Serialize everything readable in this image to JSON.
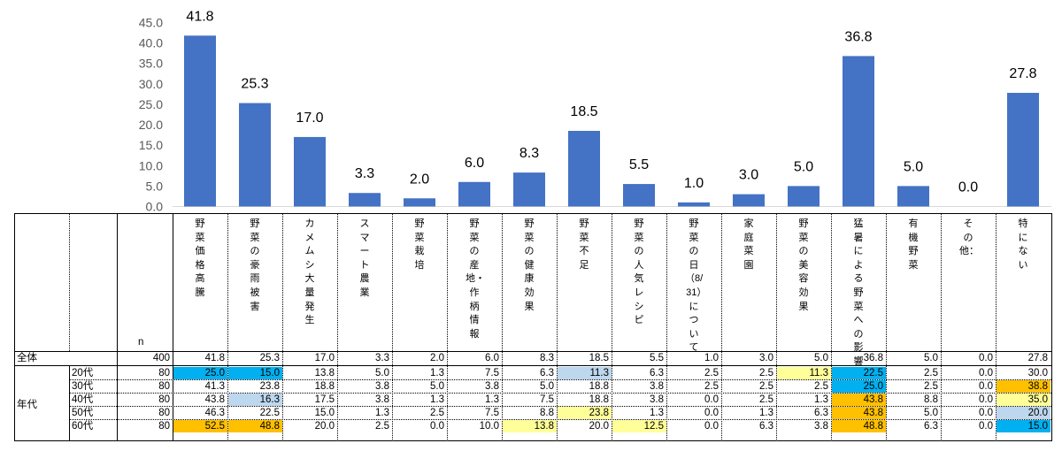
{
  "chart_data": {
    "type": "bar",
    "y_ticks": [
      "0.0",
      "5.0",
      "10.0",
      "15.0",
      "20.0",
      "25.0",
      "30.0",
      "35.0",
      "40.0",
      "45.0"
    ],
    "ylim": [
      0,
      45
    ],
    "categories": [
      "野菜価格高騰",
      "野菜の豪雨被害",
      "カメムシ大量発生",
      "スマート農業",
      "野菜栽培",
      "野菜の産地・作柄情報",
      "野菜の健康効果",
      "野菜不足",
      "野菜の人気レシピ",
      "野菜の日（8/31）について",
      "家庭菜園",
      "野菜の美容効果",
      "猛暑による野菜への影響",
      "有機野菜",
      "その他：",
      "特にない"
    ],
    "values": [
      41.8,
      25.3,
      17.0,
      3.3,
      2.0,
      6.0,
      8.3,
      18.5,
      5.5,
      1.0,
      3.0,
      5.0,
      36.8,
      5.0,
      0.0,
      27.8
    ],
    "value_labels": [
      "41.8",
      "25.3",
      "17.0",
      "3.3",
      "2.0",
      "6.0",
      "8.3",
      "18.5",
      "5.5",
      "1.0",
      "3.0",
      "5.0",
      "36.8",
      "5.0",
      "0.0",
      "27.8"
    ],
    "bar_color": "#4472C4"
  },
  "table": {
    "n_header": "n",
    "group_label": "年代",
    "rows": [
      {
        "label": "全体",
        "n": "400",
        "cells": [
          "41.8",
          "25.3",
          "17.0",
          "3.3",
          "2.0",
          "6.0",
          "8.3",
          "18.5",
          "5.5",
          "1.0",
          "3.0",
          "5.0",
          "36.8",
          "5.0",
          "0.0",
          "27.8"
        ],
        "hl": [
          "",
          "",
          "",
          "",
          "",
          "",
          "",
          "",
          "",
          "",
          "",
          "",
          "",
          "",
          "",
          ""
        ]
      },
      {
        "label": "20代",
        "n": "80",
        "cells": [
          "25.0",
          "15.0",
          "13.8",
          "5.0",
          "1.3",
          "7.5",
          "6.3",
          "11.3",
          "6.3",
          "2.5",
          "2.5",
          "11.3",
          "22.5",
          "2.5",
          "0.0",
          "30.0"
        ],
        "hl": [
          "c",
          "c",
          "",
          "",
          "",
          "",
          "",
          "l",
          "",
          "",
          "",
          "y",
          "c",
          "",
          "",
          ""
        ]
      },
      {
        "label": "30代",
        "n": "80",
        "cells": [
          "41.3",
          "23.8",
          "18.8",
          "3.8",
          "5.0",
          "3.8",
          "5.0",
          "18.8",
          "3.8",
          "2.5",
          "2.5",
          "2.5",
          "25.0",
          "2.5",
          "0.0",
          "38.8"
        ],
        "hl": [
          "",
          "",
          "",
          "",
          "",
          "",
          "",
          "",
          "",
          "",
          "",
          "",
          "c",
          "",
          "",
          "o"
        ]
      },
      {
        "label": "40代",
        "n": "80",
        "cells": [
          "43.8",
          "16.3",
          "17.5",
          "3.8",
          "1.3",
          "1.3",
          "7.5",
          "18.8",
          "3.8",
          "0.0",
          "2.5",
          "1.3",
          "43.8",
          "8.8",
          "0.0",
          "35.0"
        ],
        "hl": [
          "",
          "l",
          "",
          "",
          "",
          "",
          "",
          "",
          "",
          "",
          "",
          "",
          "o",
          "",
          "",
          "y"
        ]
      },
      {
        "label": "50代",
        "n": "80",
        "cells": [
          "46.3",
          "22.5",
          "15.0",
          "1.3",
          "2.5",
          "7.5",
          "8.8",
          "23.8",
          "1.3",
          "0.0",
          "1.3",
          "6.3",
          "43.8",
          "5.0",
          "0.0",
          "20.0"
        ],
        "hl": [
          "",
          "",
          "",
          "",
          "",
          "",
          "",
          "y",
          "",
          "",
          "",
          "",
          "o",
          "",
          "",
          "l"
        ]
      },
      {
        "label": "60代",
        "n": "80",
        "cells": [
          "52.5",
          "48.8",
          "20.0",
          "2.5",
          "0.0",
          "10.0",
          "13.8",
          "20.0",
          "12.5",
          "0.0",
          "6.3",
          "3.8",
          "48.8",
          "6.3",
          "0.0",
          "15.0"
        ],
        "hl": [
          "o",
          "o",
          "",
          "",
          "",
          "",
          "y",
          "",
          "y",
          "",
          "",
          "",
          "o",
          "",
          "",
          "c"
        ]
      }
    ],
    "highlight_colors": {
      "c": "#00B0F0",
      "l": "#BDD7EE",
      "y": "#FFFF99",
      "o": "#FFC000"
    }
  }
}
